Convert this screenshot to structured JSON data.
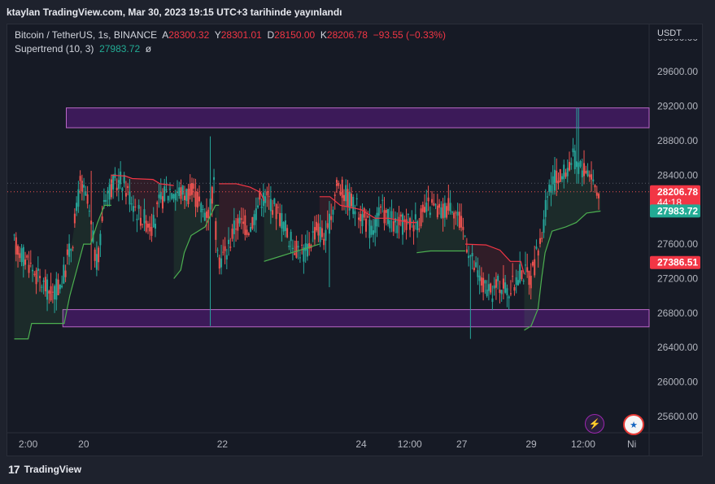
{
  "header": {
    "title": "ktaylan TradingView.com, Mar 30, 2023 19:15 UTC+3 tarihinde yayınlandı"
  },
  "legend": {
    "symbol": "Bitcoin / TetherUS, 1s, BINANCE",
    "open_label": "A",
    "open": "28300.32",
    "high_label": "Y",
    "high": "28301.01",
    "low_label": "D",
    "low": "28150.00",
    "close_label": "K",
    "close": "28206.78",
    "change": "−93.55 (−0.33%)",
    "indicator": "Supertrend (10, 3)",
    "indicator_value": "27983.72",
    "indicator_symbol": "ø"
  },
  "footer": {
    "brand": "TradingView",
    "logo": "17"
  },
  "colors": {
    "up": "#26a69a",
    "down": "#ef5350",
    "zone_fill": "#6a1b9a",
    "zone_border": "#ba68c8",
    "supertrend_up": "#4caf50",
    "supertrend_down": "#f23645",
    "bg": "#161a25",
    "panel": "#1e222d"
  },
  "icons": {
    "lightning": "lightning-icon",
    "flag": "us-flag-icon"
  },
  "chart_data": {
    "type": "candlestick",
    "symbol": "BTCUSDT",
    "interval": "1s",
    "currency": "USDT",
    "y_ticks": [
      30000,
      29600,
      29200,
      28800,
      28400,
      28000,
      27600,
      27200,
      26800,
      26400,
      26000,
      25600
    ],
    "y_tick_labels": [
      "30000.00",
      "29600.00",
      "29200.00",
      "28800.00",
      "28400.00",
      "28000.00",
      "27600.00",
      "27200.00",
      "26800.00",
      "26400.00",
      "26000.00",
      "25600.00"
    ],
    "ylim": [
      25430,
      30130
    ],
    "x_ticks": [
      {
        "label": "2:00",
        "t": 0.2
      },
      {
        "label": "20",
        "t": 1.0
      },
      {
        "label": "22",
        "t": 3.0
      },
      {
        "label": "24",
        "t": 5.0
      },
      {
        "label": "12:00",
        "t": 5.7
      },
      {
        "label": "27",
        "t": 6.45
      },
      {
        "label": "29",
        "t": 7.45
      },
      {
        "label": "12:00",
        "t": 8.2
      },
      {
        "label": "Ni",
        "t": 8.9
      }
    ],
    "zones": [
      {
        "from": 28950,
        "to": 29180,
        "t_start": 0.75
      },
      {
        "from": 26640,
        "to": 26840,
        "t_start": 0.7
      }
    ],
    "price_labels": [
      {
        "value": 28206.78,
        "text": "28206.78",
        "sub": "44:18",
        "color": "#f23645"
      },
      {
        "value": 27983.72,
        "text": "27983.72",
        "color": "#22ab94"
      },
      {
        "value": 27386.51,
        "text": "27386.51",
        "color": "#f23645"
      }
    ],
    "current_price": 28206.78,
    "anchors": [
      [
        0.0,
        27600
      ],
      [
        0.2,
        27400
      ],
      [
        0.35,
        27200
      ],
      [
        0.55,
        27000
      ],
      [
        0.7,
        27200
      ],
      [
        0.85,
        27700
      ],
      [
        0.95,
        28300
      ],
      [
        1.05,
        28100
      ],
      [
        1.2,
        27300
      ],
      [
        1.3,
        28200
      ],
      [
        1.55,
        28350
      ],
      [
        1.8,
        27950
      ],
      [
        2.0,
        27800
      ],
      [
        2.1,
        28100
      ],
      [
        2.25,
        28250
      ],
      [
        2.4,
        28200
      ],
      [
        2.6,
        28180
      ],
      [
        2.7,
        28000
      ],
      [
        2.8,
        27980
      ],
      [
        2.88,
        28300
      ],
      [
        2.92,
        27400
      ],
      [
        3.05,
        27500
      ],
      [
        3.2,
        27850
      ],
      [
        3.4,
        27800
      ],
      [
        3.55,
        28150
      ],
      [
        3.7,
        28100
      ],
      [
        3.85,
        27900
      ],
      [
        4.0,
        27600
      ],
      [
        4.2,
        27500
      ],
      [
        4.35,
        27800
      ],
      [
        4.5,
        27650
      ],
      [
        4.65,
        28300
      ],
      [
        4.8,
        28150
      ],
      [
        5.0,
        27950
      ],
      [
        5.15,
        27750
      ],
      [
        5.3,
        28000
      ],
      [
        5.5,
        27800
      ],
      [
        5.7,
        27850
      ],
      [
        5.85,
        27900
      ],
      [
        6.0,
        28050
      ],
      [
        6.15,
        27950
      ],
      [
        6.3,
        28100
      ],
      [
        6.5,
        27700
      ],
      [
        6.6,
        27400
      ],
      [
        6.7,
        27200
      ],
      [
        6.85,
        27000
      ],
      [
        7.0,
        27150
      ],
      [
        7.15,
        27050
      ],
      [
        7.3,
        27300
      ],
      [
        7.45,
        27200
      ],
      [
        7.6,
        27700
      ],
      [
        7.72,
        28300
      ],
      [
        7.9,
        28400
      ],
      [
        8.05,
        28600
      ],
      [
        8.15,
        28500
      ],
      [
        8.3,
        28450
      ],
      [
        8.4,
        28200
      ]
    ],
    "supertrend": [
      {
        "points": [
          [
            0.0,
            26500
          ],
          [
            0.2,
            26500
          ],
          [
            0.25,
            26680
          ],
          [
            0.6,
            26680
          ],
          [
            0.72,
            26680
          ],
          [
            0.8,
            27000
          ],
          [
            0.9,
            27300
          ],
          [
            1.0,
            27600
          ],
          [
            1.1,
            27600
          ],
          [
            1.2,
            27850
          ],
          [
            1.3,
            28050
          ],
          [
            1.4,
            28050
          ]
        ],
        "trend": "up"
      },
      {
        "points": [
          [
            1.4,
            28400
          ],
          [
            1.6,
            28390
          ],
          [
            1.7,
            28360
          ],
          [
            2.0,
            28350
          ],
          [
            2.1,
            28300
          ],
          [
            2.3,
            28280
          ]
        ],
        "trend": "down"
      },
      {
        "points": [
          [
            2.3,
            27200
          ],
          [
            2.4,
            27300
          ],
          [
            2.45,
            27500
          ],
          [
            2.55,
            27700
          ],
          [
            2.75,
            27800
          ],
          [
            2.9,
            28050
          ],
          [
            2.95,
            28050
          ]
        ],
        "trend": "up"
      },
      {
        "points": [
          [
            2.95,
            28300
          ],
          [
            3.2,
            28300
          ],
          [
            3.4,
            28260
          ],
          [
            3.55,
            28200
          ],
          [
            3.6,
            28100
          ]
        ],
        "trend": "down"
      },
      {
        "points": [
          [
            3.6,
            27400
          ],
          [
            3.8,
            27450
          ],
          [
            4.0,
            27500
          ],
          [
            4.2,
            27550
          ],
          [
            4.4,
            27600
          ]
        ],
        "trend": "up"
      },
      {
        "points": [
          [
            4.4,
            28150
          ],
          [
            4.55,
            28150
          ],
          [
            4.7,
            28050
          ],
          [
            5.0,
            28000
          ],
          [
            5.2,
            27900
          ],
          [
            5.4,
            27900
          ],
          [
            5.7,
            27850
          ],
          [
            5.8,
            27850
          ]
        ],
        "trend": "down"
      },
      {
        "points": [
          [
            5.8,
            27500
          ],
          [
            6.0,
            27520
          ],
          [
            6.2,
            27520
          ],
          [
            6.5,
            27520
          ]
        ],
        "trend": "up"
      },
      {
        "points": [
          [
            6.5,
            27600
          ],
          [
            6.8,
            27590
          ],
          [
            7.0,
            27530
          ],
          [
            7.15,
            27400
          ],
          [
            7.3,
            27400
          ],
          [
            7.35,
            27250
          ]
        ],
        "trend": "down"
      },
      {
        "points": [
          [
            7.35,
            26600
          ],
          [
            7.45,
            26650
          ],
          [
            7.55,
            26850
          ],
          [
            7.6,
            27200
          ],
          [
            7.65,
            27500
          ],
          [
            7.75,
            27750
          ],
          [
            7.95,
            27800
          ],
          [
            8.1,
            27850
          ],
          [
            8.25,
            27960
          ],
          [
            8.45,
            27983
          ]
        ],
        "trend": "up"
      }
    ]
  }
}
